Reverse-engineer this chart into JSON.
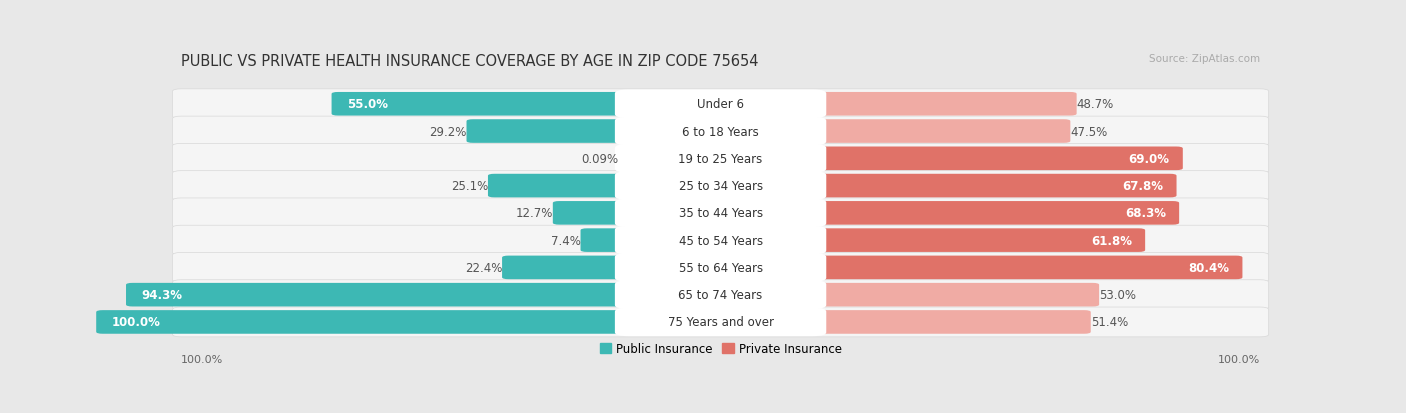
{
  "title": "PUBLIC VS PRIVATE HEALTH INSURANCE COVERAGE BY AGE IN ZIP CODE 75654",
  "source": "Source: ZipAtlas.com",
  "categories": [
    "Under 6",
    "6 to 18 Years",
    "19 to 25 Years",
    "25 to 34 Years",
    "35 to 44 Years",
    "45 to 54 Years",
    "55 to 64 Years",
    "65 to 74 Years",
    "75 Years and over"
  ],
  "public_values": [
    55.0,
    29.2,
    0.09,
    25.1,
    12.7,
    7.4,
    22.4,
    94.3,
    100.0
  ],
  "private_values": [
    48.7,
    47.5,
    69.0,
    67.8,
    68.3,
    61.8,
    80.4,
    53.0,
    51.4
  ],
  "public_color": "#3db8b4",
  "private_color_high": "#e07268",
  "private_color_low": "#f0aba4",
  "private_threshold": 60.0,
  "bg_color": "#e8e8e8",
  "row_bg_color": "#f5f5f5",
  "row_border_color": "#d8d8d8",
  "max_value": 100.0,
  "title_fontsize": 10.5,
  "source_fontsize": 7.5,
  "cat_label_fontsize": 8.5,
  "bar_label_fontsize": 8.5,
  "legend_fontsize": 8.5,
  "axis_label_fontsize": 8
}
